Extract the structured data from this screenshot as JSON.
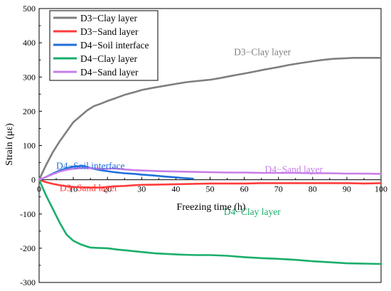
{
  "chart_data": {
    "type": "line",
    "title": "",
    "xlabel": "Freezing time (h)",
    "ylabel": "Strain (με)",
    "xlim": [
      0,
      100
    ],
    "ylim": [
      -300,
      500
    ],
    "x_ticks": [
      "0",
      "10",
      "20",
      "30",
      "40",
      "50",
      "60",
      "70",
      "80",
      "90",
      "100"
    ],
    "y_ticks": [
      "-300",
      "-200",
      "-100",
      "0",
      "100",
      "200",
      "300",
      "400",
      "500"
    ],
    "grid": false,
    "legend_position": "top-left",
    "series": [
      {
        "name": "D3−Clay layer",
        "color": "#7f7f7f",
        "x": [
          0,
          2,
          4,
          6,
          8,
          10,
          12,
          14,
          16,
          18,
          20,
          22,
          25,
          28,
          30,
          33,
          36,
          40,
          43,
          46,
          50,
          53,
          56,
          60,
          63,
          66,
          70,
          73,
          76,
          80,
          83,
          86,
          90,
          92,
          95,
          100
        ],
        "y": [
          0,
          42,
          80,
          112,
          140,
          168,
          185,
          202,
          215,
          222,
          230,
          237,
          248,
          256,
          262,
          268,
          273,
          280,
          285,
          288,
          292,
          297,
          303,
          310,
          316,
          322,
          329,
          335,
          340,
          346,
          350,
          353,
          355,
          356,
          356,
          356
        ]
      },
      {
        "name": "D3−Sand layer",
        "color": "#ff3b3b",
        "x": [
          0,
          2,
          4,
          6,
          8,
          10,
          12,
          15,
          18,
          20,
          22,
          25,
          28,
          30,
          35,
          40,
          45,
          50,
          55,
          60,
          65,
          70,
          75,
          80,
          85,
          90,
          95,
          100
        ],
        "y": [
          0,
          -7,
          -12,
          -16,
          -19,
          -21,
          -22,
          -23,
          -23,
          -21,
          -19,
          -18,
          -16,
          -15,
          -14,
          -13,
          -12,
          -11,
          -11,
          -11,
          -10,
          -10,
          -10,
          -10,
          -10,
          -10,
          -11,
          -10
        ]
      },
      {
        "name": "D4−Soil interface",
        "color": "#1f6fdc",
        "x": [
          0,
          2,
          4,
          6,
          8,
          10,
          12,
          13,
          14,
          16,
          18,
          20,
          22,
          25,
          28,
          30,
          33,
          36,
          40,
          42,
          45
        ],
        "y": [
          0,
          8,
          18,
          27,
          33,
          38,
          40,
          40,
          37,
          32,
          28,
          25,
          22,
          19,
          17,
          15,
          13,
          10,
          7,
          5,
          3
        ]
      },
      {
        "name": "D4−Clay layer",
        "color": "#1aae6a",
        "x": [
          0,
          2,
          4,
          6,
          8,
          10,
          12,
          14,
          15,
          17,
          20,
          23,
          26,
          30,
          34,
          38,
          42,
          46,
          50,
          55,
          60,
          65,
          70,
          75,
          80,
          85,
          90,
          95,
          100
        ],
        "y": [
          0,
          -45,
          -85,
          -125,
          -160,
          -178,
          -188,
          -195,
          -198,
          -199,
          -200,
          -204,
          -207,
          -211,
          -215,
          -217,
          -219,
          -220,
          -220,
          -222,
          -226,
          -229,
          -231,
          -234,
          -238,
          -241,
          -244,
          -245,
          -246
        ]
      },
      {
        "name": "D4−Sand layer",
        "color": "#c77ee8",
        "x": [
          0,
          2,
          4,
          6,
          8,
          10,
          12,
          14,
          16,
          18,
          20,
          22,
          25,
          28,
          30,
          35,
          40,
          45,
          50,
          55,
          60,
          65,
          70,
          75,
          80,
          85,
          90,
          95,
          100
        ],
        "y": [
          0,
          8,
          16,
          24,
          29,
          32,
          34,
          34,
          33,
          32,
          32,
          33,
          30,
          28,
          27,
          25,
          24,
          23,
          22,
          21,
          21,
          20,
          20,
          20,
          19,
          19,
          18,
          18,
          17
        ]
      }
    ],
    "annotations": [
      {
        "text": "D3−Clay layer",
        "x": 57,
        "y": 364,
        "color": "#7f7f7f"
      },
      {
        "text": "D4−Soil interface",
        "x": 5,
        "y": 31,
        "color": "#1f6fdc"
      },
      {
        "text": "D4−Sand layer",
        "x": 66,
        "y": 21,
        "color": "#c77ee8"
      },
      {
        "text": "D3−Sand layer",
        "x": 6,
        "y": -33,
        "color": "#ff3b3b"
      },
      {
        "text": "D4−Clay layer",
        "x": 54,
        "y": -103,
        "color": "#1aae6a"
      }
    ]
  }
}
